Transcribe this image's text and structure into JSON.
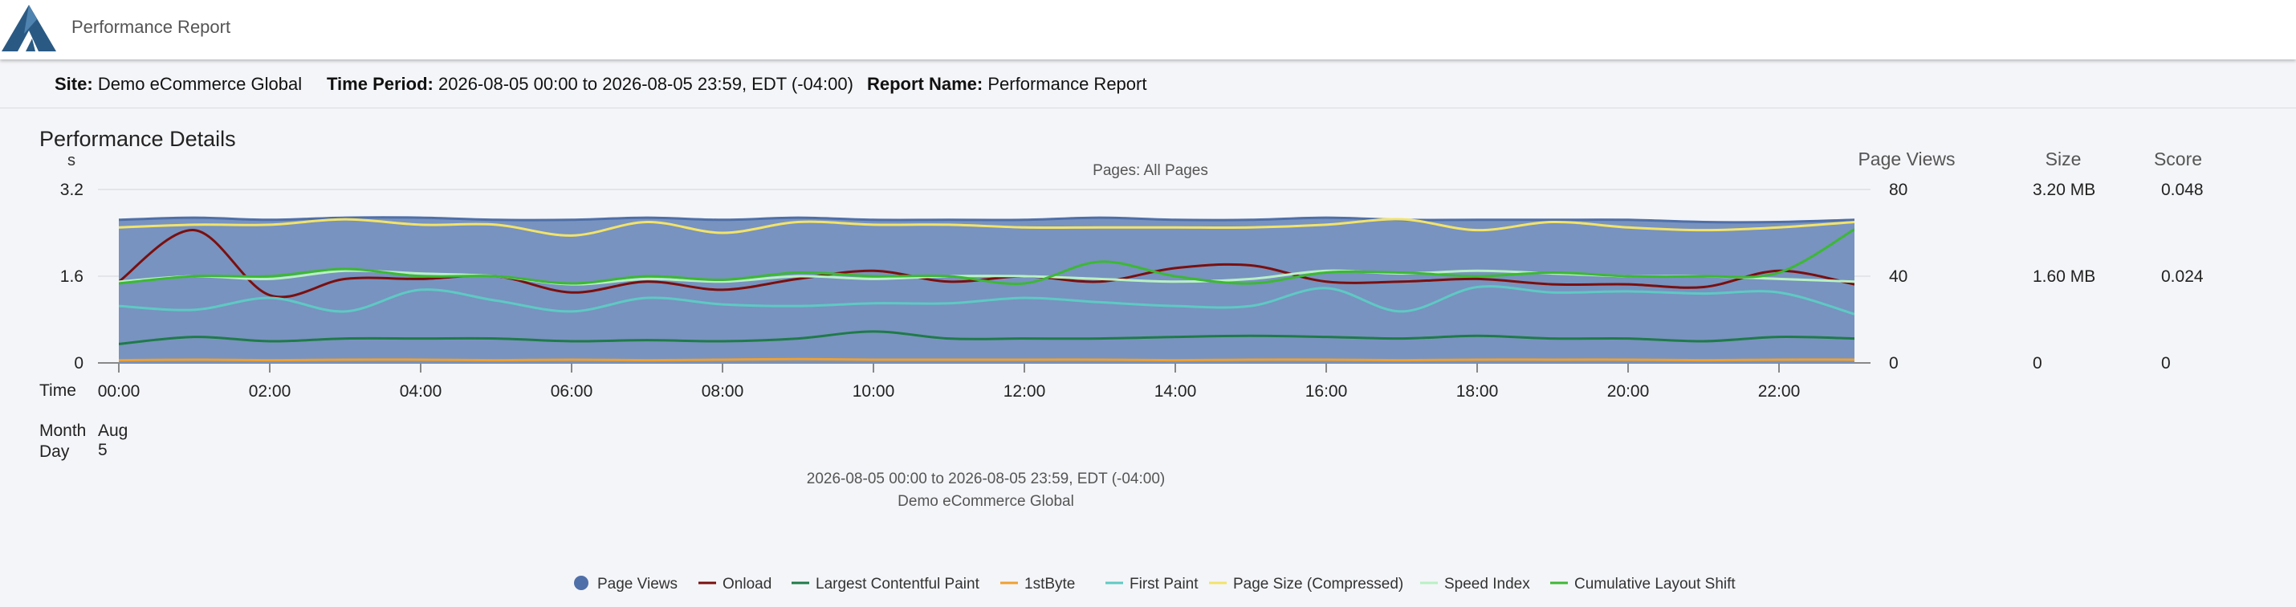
{
  "header": {
    "app_title": "Performance Report"
  },
  "info": {
    "site_label": "Site:",
    "site_value": "Demo eCommerce Global",
    "period_label": "Time Period:",
    "period_value": "2026-08-05 00:00 to 2026-08-05 23:59, EDT (-04:00)",
    "report_label": "Report Name:",
    "report_value": "Performance Report"
  },
  "section": {
    "title": "Performance Details"
  },
  "chart_data": {
    "type": "area",
    "title": "Pages: All Pages",
    "subtitle_line1": "2026-08-05 00:00 to 2026-08-05 23:59, EDT (-04:00)",
    "subtitle_line2": "Demo eCommerce Global",
    "left_axis": {
      "unit": "s",
      "ticks": [
        "3.2",
        "1.6",
        "0"
      ],
      "range": [
        0,
        3.2
      ]
    },
    "right_axes": [
      {
        "title": "Page Views",
        "ticks": [
          "80",
          "40",
          "0"
        ],
        "range": [
          0,
          80
        ]
      },
      {
        "title": "Size",
        "ticks": [
          "3.20 MB",
          "1.60 MB",
          "0"
        ],
        "range": [
          0,
          3.2
        ]
      },
      {
        "title": "Score",
        "ticks": [
          "0.048",
          "0.024",
          "0"
        ],
        "range": [
          0,
          0.048
        ]
      }
    ],
    "x_axis": {
      "row_labels": {
        "time": "Time",
        "month": "Month",
        "day": "Day"
      },
      "month": "Aug",
      "day": "5",
      "x": [
        0,
        1,
        2,
        3,
        4,
        5,
        6,
        7,
        8,
        9,
        10,
        11,
        12,
        13,
        14,
        15,
        16,
        17,
        18,
        19,
        20,
        21,
        22,
        23
      ],
      "tick_labels": [
        "00:00",
        "02:00",
        "04:00",
        "06:00",
        "08:00",
        "10:00",
        "12:00",
        "14:00",
        "16:00",
        "18:00",
        "20:00",
        "22:00"
      ]
    },
    "series": [
      {
        "name": "Page Views",
        "axis": "pageviews",
        "color": "#4f6fa8",
        "marker": "circle",
        "values": [
          66,
          67,
          66,
          67,
          67,
          66,
          66,
          67,
          66,
          67,
          66,
          66,
          66,
          67,
          66,
          66,
          67,
          66,
          66,
          66,
          66,
          65,
          65,
          66
        ]
      },
      {
        "name": "Onload",
        "axis": "seconds",
        "color": "#7a0f0f",
        "values": [
          1.5,
          2.45,
          1.25,
          1.55,
          1.55,
          1.6,
          1.3,
          1.5,
          1.35,
          1.55,
          1.7,
          1.5,
          1.6,
          1.5,
          1.75,
          1.8,
          1.5,
          1.5,
          1.55,
          1.45,
          1.45,
          1.4,
          1.7,
          1.45
        ]
      },
      {
        "name": "Largest Contentful Paint",
        "axis": "seconds",
        "color": "#1f7a4a",
        "values": [
          0.35,
          0.48,
          0.4,
          0.45,
          0.45,
          0.45,
          0.4,
          0.42,
          0.4,
          0.45,
          0.58,
          0.45,
          0.45,
          0.45,
          0.48,
          0.5,
          0.48,
          0.45,
          0.5,
          0.45,
          0.45,
          0.4,
          0.48,
          0.45
        ]
      },
      {
        "name": "1stByte",
        "axis": "seconds",
        "color": "#f0a030",
        "values": [
          0.05,
          0.06,
          0.05,
          0.06,
          0.06,
          0.05,
          0.06,
          0.05,
          0.06,
          0.07,
          0.06,
          0.06,
          0.06,
          0.06,
          0.05,
          0.06,
          0.06,
          0.05,
          0.06,
          0.06,
          0.06,
          0.05,
          0.06,
          0.06
        ]
      },
      {
        "name": "First Paint",
        "axis": "seconds",
        "color": "#5ec9c4",
        "values": [
          1.05,
          0.98,
          1.2,
          0.95,
          1.35,
          1.15,
          0.95,
          1.2,
          1.08,
          1.05,
          1.1,
          1.1,
          1.2,
          1.12,
          1.05,
          1.05,
          1.38,
          0.95,
          1.4,
          1.3,
          1.32,
          1.28,
          1.3,
          0.9
        ]
      },
      {
        "name": "Page Size (Compressed)",
        "axis": "size",
        "color": "#f2e36a",
        "values": [
          2.5,
          2.55,
          2.55,
          2.65,
          2.55,
          2.55,
          2.35,
          2.6,
          2.4,
          2.6,
          2.55,
          2.55,
          2.5,
          2.5,
          2.5,
          2.5,
          2.55,
          2.65,
          2.45,
          2.6,
          2.5,
          2.45,
          2.5,
          2.6
        ]
      },
      {
        "name": "Speed Index",
        "axis": "seconds",
        "color": "#b8f0c4",
        "values": [
          1.5,
          1.6,
          1.55,
          1.7,
          1.65,
          1.6,
          1.45,
          1.55,
          1.5,
          1.6,
          1.55,
          1.6,
          1.6,
          1.55,
          1.5,
          1.55,
          1.7,
          1.65,
          1.7,
          1.65,
          1.6,
          1.6,
          1.55,
          1.5
        ]
      },
      {
        "name": "Cumulative Layout Shift",
        "axis": "score",
        "color": "#3cb834",
        "values": [
          0.022,
          0.024,
          0.024,
          0.026,
          0.024,
          0.024,
          0.022,
          0.024,
          0.023,
          0.025,
          0.024,
          0.024,
          0.022,
          0.028,
          0.024,
          0.022,
          0.025,
          0.025,
          0.024,
          0.025,
          0.024,
          0.024,
          0.025,
          0.037
        ]
      }
    ]
  }
}
